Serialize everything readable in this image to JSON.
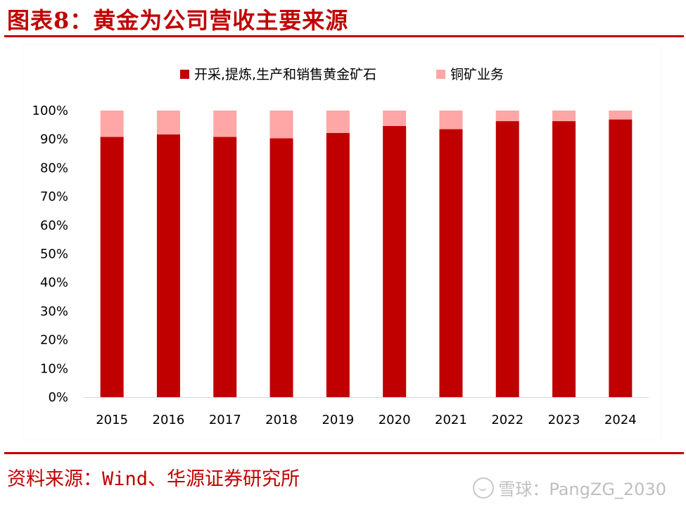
{
  "title": "图表8：黄金为公司营收主要来源",
  "source": "资料来源：Wind、华源证券研究所",
  "watermark": "雪球：PangZG_2030",
  "colors": {
    "accent": "#c00000",
    "gold_series": "#c00000",
    "copper_series": "#ffa6a6"
  },
  "chart_data": {
    "type": "bar",
    "stacked": true,
    "categories": [
      "2015",
      "2016",
      "2017",
      "2018",
      "2019",
      "2020",
      "2021",
      "2022",
      "2023",
      "2024"
    ],
    "series": [
      {
        "name": "开采,提炼,生产和销售黄金矿石",
        "color": "#c00000",
        "values": [
          90.8,
          91.7,
          90.8,
          90.3,
          92.2,
          94.6,
          93.5,
          96.3,
          96.3,
          96.9
        ]
      },
      {
        "name": "铜矿业务",
        "color": "#ffa6a6",
        "values": [
          9.2,
          8.3,
          9.2,
          9.7,
          7.8,
          5.4,
          6.5,
          3.7,
          3.7,
          3.1
        ]
      }
    ],
    "ylim": [
      0,
      100
    ],
    "yticks": [
      "0%",
      "10%",
      "20%",
      "30%",
      "40%",
      "50%",
      "60%",
      "70%",
      "80%",
      "90%",
      "100%"
    ],
    "legend_position": "top",
    "grid": false
  }
}
